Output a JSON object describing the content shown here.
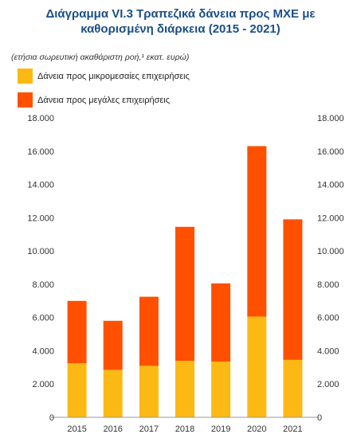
{
  "header": {
    "title_line1": "Διάγραμμα VI.3 Τραπεζικά δάνεια προς ΜΧΕ με",
    "title_line2": "καθορισμένη διάρκεια (2015 - 2021)"
  },
  "subtitle": "(ετήσια σωρευτική ακαθάριστη ροή,¹ εκατ. ευρώ)",
  "colors": {
    "small_medium": "#FDB913",
    "large": "#FF5000"
  },
  "chart_data": {
    "type": "bar",
    "stacked": true,
    "categories": [
      "2015",
      "2016",
      "2017",
      "2018",
      "2019",
      "2020",
      "2021"
    ],
    "series": [
      {
        "name": "Δάνεια προς μικρομεσαίες επιχειρήσεις",
        "values": [
          3250,
          2850,
          3100,
          3400,
          3350,
          6050,
          3450
        ]
      },
      {
        "name": "Δάνεια προς μεγάλες επιχειρήσεις",
        "values": [
          3750,
          2950,
          4150,
          8050,
          4700,
          10250,
          8450
        ]
      }
    ],
    "ylim": [
      0,
      18000
    ],
    "yticks": [
      "0",
      "2.000",
      "4.000",
      "6.000",
      "8.000",
      "10.000",
      "12.000",
      "14.000",
      "16.000",
      "18.000"
    ],
    "legend_position": "top-left",
    "grid": false
  }
}
